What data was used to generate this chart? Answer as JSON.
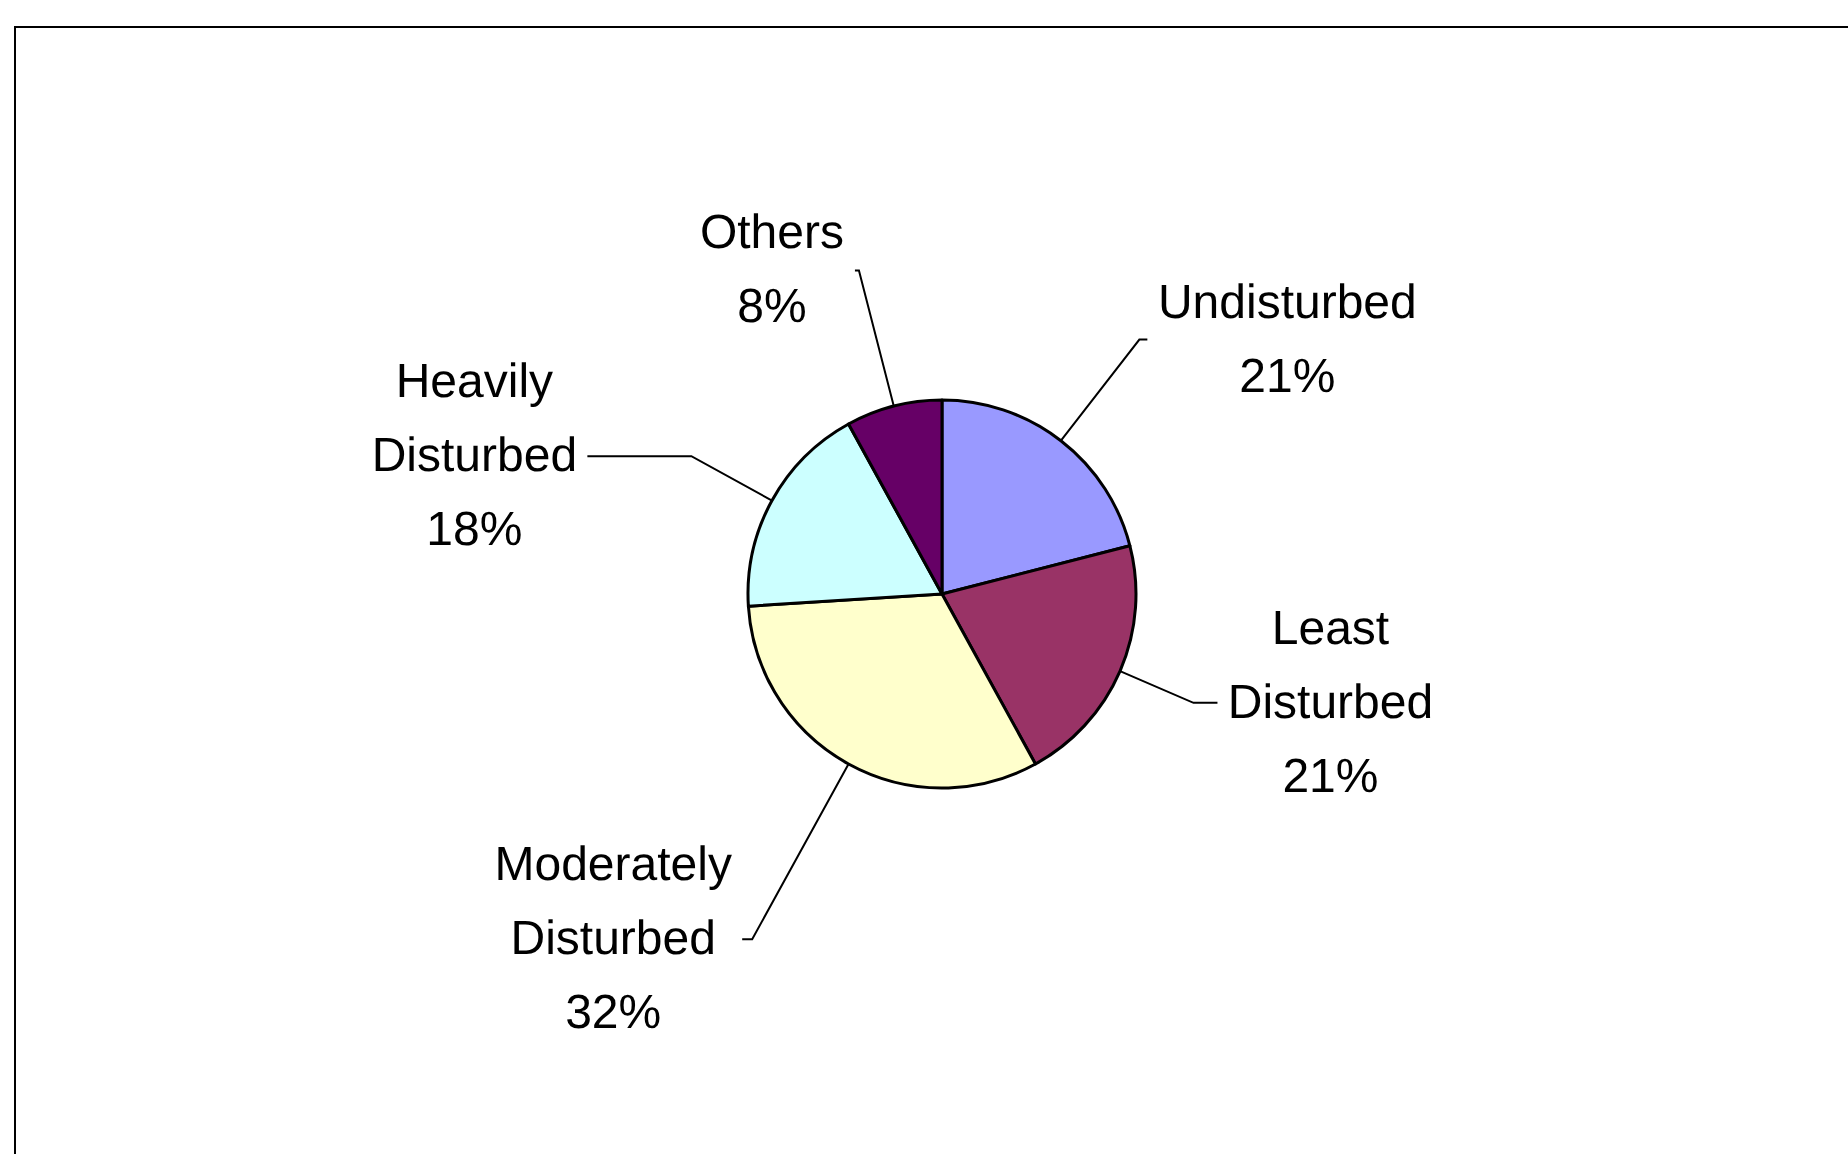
{
  "chart_data": {
    "type": "pie",
    "categories": [
      "Undisturbed",
      "Least Disturbed",
      "Moderately Disturbed",
      "Heavily Disturbed",
      "Others"
    ],
    "values": [
      21,
      21,
      32,
      18,
      8
    ],
    "colors": [
      "#9999ff",
      "#993366",
      "#ffffcc",
      "#ccffff",
      "#660066"
    ],
    "value_labels": [
      "21%",
      "21%",
      "32%",
      "18%",
      "8%"
    ]
  }
}
